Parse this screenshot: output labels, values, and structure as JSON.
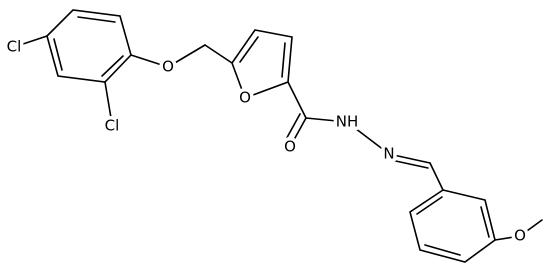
{
  "atoms": [
    {
      "label": "Cl"
    },
    {
      "label": "Cl"
    },
    {
      "label": "O"
    },
    {
      "label": "O"
    },
    {
      "label": "O"
    },
    {
      "label": "NH"
    },
    {
      "label": "N"
    },
    {
      "label": "O"
    }
  ]
}
